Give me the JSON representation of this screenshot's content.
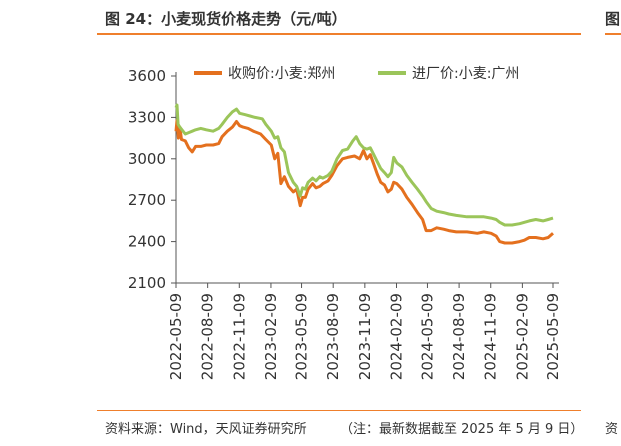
{
  "figure": {
    "title": "图 24：小麦现货价格走势（元/吨）",
    "source": "资料来源：Wind，天风证券研究所",
    "note": "（注：最新数据截至 2025 年 5 月 9 日）",
    "edge_title_fragment": "图",
    "edge_source_fragment": "资"
  },
  "chart_data": {
    "type": "line",
    "title": "小麦现货价格走势（元/吨）",
    "xlabel": "",
    "ylabel": "元/吨",
    "ylim": [
      2100,
      3600
    ],
    "yticks": [
      2100,
      2400,
      2700,
      3000,
      3300,
      3600
    ],
    "xlim": [
      "2022-05-09",
      "2025-05-09"
    ],
    "xticks": [
      "2022-05-09",
      "2022-08-09",
      "2022-11-09",
      "2023-02-09",
      "2023-05-09",
      "2023-08-09",
      "2023-11-09",
      "2024-02-09",
      "2024-05-09",
      "2024-08-09",
      "2024-11-09",
      "2025-02-09",
      "2025-05-09"
    ],
    "legend_position": "top",
    "colors": {
      "zhengzhou": "#e4701e",
      "guangzhou": "#9bc55a"
    },
    "series": [
      {
        "name": "收购价:小麦:郑州",
        "color": "#e4701e",
        "points": [
          [
            "2022-05-09",
            3200
          ],
          [
            "2022-05-12",
            3280
          ],
          [
            "2022-05-16",
            3150
          ],
          [
            "2022-05-20",
            3230
          ],
          [
            "2022-05-25",
            3140
          ],
          [
            "2022-06-05",
            3130
          ],
          [
            "2022-06-15",
            3080
          ],
          [
            "2022-06-25",
            3050
          ],
          [
            "2022-07-05",
            3090
          ],
          [
            "2022-07-20",
            3090
          ],
          [
            "2022-08-05",
            3100
          ],
          [
            "2022-08-25",
            3100
          ],
          [
            "2022-09-10",
            3110
          ],
          [
            "2022-09-20",
            3160
          ],
          [
            "2022-10-05",
            3200
          ],
          [
            "2022-10-20",
            3230
          ],
          [
            "2022-11-01",
            3270
          ],
          [
            "2022-11-10",
            3240
          ],
          [
            "2022-11-20",
            3230
          ],
          [
            "2022-12-05",
            3220
          ],
          [
            "2022-12-20",
            3200
          ],
          [
            "2023-01-10",
            3180
          ],
          [
            "2023-01-25",
            3140
          ],
          [
            "2023-02-10",
            3100
          ],
          [
            "2023-02-20",
            3000
          ],
          [
            "2023-03-01",
            3040
          ],
          [
            "2023-03-10",
            2820
          ],
          [
            "2023-03-20",
            2870
          ],
          [
            "2023-04-01",
            2800
          ],
          [
            "2023-04-15",
            2760
          ],
          [
            "2023-04-25",
            2780
          ],
          [
            "2023-05-05",
            2660
          ],
          [
            "2023-05-12",
            2720
          ],
          [
            "2023-05-20",
            2720
          ],
          [
            "2023-05-28",
            2780
          ],
          [
            "2023-06-10",
            2820
          ],
          [
            "2023-06-20",
            2790
          ],
          [
            "2023-07-01",
            2800
          ],
          [
            "2023-07-10",
            2820
          ],
          [
            "2023-07-25",
            2840
          ],
          [
            "2023-08-05",
            2880
          ],
          [
            "2023-08-20",
            2950
          ],
          [
            "2023-09-05",
            3000
          ],
          [
            "2023-09-20",
            3010
          ],
          [
            "2023-10-10",
            3020
          ],
          [
            "2023-10-25",
            3000
          ],
          [
            "2023-11-05",
            3060
          ],
          [
            "2023-11-15",
            3000
          ],
          [
            "2023-11-25",
            3030
          ],
          [
            "2023-12-05",
            2960
          ],
          [
            "2023-12-15",
            2890
          ],
          [
            "2023-12-25",
            2830
          ],
          [
            "2024-01-05",
            2810
          ],
          [
            "2024-01-15",
            2760
          ],
          [
            "2024-01-25",
            2780
          ],
          [
            "2024-02-01",
            2830
          ],
          [
            "2024-02-10",
            2820
          ],
          [
            "2024-02-25",
            2780
          ],
          [
            "2024-03-10",
            2720
          ],
          [
            "2024-03-25",
            2670
          ],
          [
            "2024-04-10",
            2610
          ],
          [
            "2024-04-25",
            2560
          ],
          [
            "2024-05-05",
            2480
          ],
          [
            "2024-05-20",
            2480
          ],
          [
            "2024-06-05",
            2500
          ],
          [
            "2024-06-25",
            2490
          ],
          [
            "2024-07-10",
            2480
          ],
          [
            "2024-08-01",
            2470
          ],
          [
            "2024-09-01",
            2470
          ],
          [
            "2024-10-01",
            2460
          ],
          [
            "2024-10-20",
            2470
          ],
          [
            "2024-11-10",
            2460
          ],
          [
            "2024-11-25",
            2440
          ],
          [
            "2024-12-05",
            2400
          ],
          [
            "2024-12-20",
            2390
          ],
          [
            "2025-01-10",
            2390
          ],
          [
            "2025-02-01",
            2400
          ],
          [
            "2025-02-15",
            2410
          ],
          [
            "2025-03-01",
            2430
          ],
          [
            "2025-03-20",
            2430
          ],
          [
            "2025-04-10",
            2420
          ],
          [
            "2025-04-25",
            2430
          ],
          [
            "2025-05-09",
            2460
          ]
        ]
      },
      {
        "name": "进厂价:小麦:广州",
        "color": "#9bc55a",
        "points": [
          [
            "2022-05-09",
            3370
          ],
          [
            "2022-05-12",
            3390
          ],
          [
            "2022-05-15",
            3250
          ],
          [
            "2022-05-20",
            3230
          ],
          [
            "2022-06-05",
            3180
          ],
          [
            "2022-06-15",
            3190
          ],
          [
            "2022-06-25",
            3200
          ],
          [
            "2022-07-05",
            3210
          ],
          [
            "2022-07-20",
            3220
          ],
          [
            "2022-08-05",
            3210
          ],
          [
            "2022-08-25",
            3200
          ],
          [
            "2022-09-10",
            3220
          ],
          [
            "2022-09-20",
            3250
          ],
          [
            "2022-10-05",
            3300
          ],
          [
            "2022-10-20",
            3340
          ],
          [
            "2022-11-01",
            3360
          ],
          [
            "2022-11-10",
            3330
          ],
          [
            "2022-11-25",
            3320
          ],
          [
            "2022-12-10",
            3310
          ],
          [
            "2022-12-25",
            3300
          ],
          [
            "2023-01-15",
            3290
          ],
          [
            "2023-01-25",
            3250
          ],
          [
            "2023-02-10",
            3200
          ],
          [
            "2023-02-20",
            3150
          ],
          [
            "2023-03-01",
            3160
          ],
          [
            "2023-03-10",
            3080
          ],
          [
            "2023-03-20",
            3050
          ],
          [
            "2023-04-01",
            2900
          ],
          [
            "2023-04-15",
            2830
          ],
          [
            "2023-04-25",
            2800
          ],
          [
            "2023-05-05",
            2730
          ],
          [
            "2023-05-12",
            2790
          ],
          [
            "2023-05-20",
            2780
          ],
          [
            "2023-05-28",
            2830
          ],
          [
            "2023-06-10",
            2860
          ],
          [
            "2023-06-20",
            2840
          ],
          [
            "2023-07-01",
            2870
          ],
          [
            "2023-07-10",
            2860
          ],
          [
            "2023-07-25",
            2880
          ],
          [
            "2023-08-05",
            2910
          ],
          [
            "2023-08-20",
            3000
          ],
          [
            "2023-09-05",
            3060
          ],
          [
            "2023-09-20",
            3070
          ],
          [
            "2023-10-05",
            3130
          ],
          [
            "2023-10-15",
            3160
          ],
          [
            "2023-10-25",
            3110
          ],
          [
            "2023-11-05",
            3080
          ],
          [
            "2023-11-15",
            3070
          ],
          [
            "2023-11-25",
            3080
          ],
          [
            "2023-12-05",
            3030
          ],
          [
            "2023-12-15",
            2980
          ],
          [
            "2023-12-25",
            2930
          ],
          [
            "2024-01-05",
            2900
          ],
          [
            "2024-01-15",
            2870
          ],
          [
            "2024-01-25",
            2900
          ],
          [
            "2024-02-01",
            3010
          ],
          [
            "2024-02-10",
            2970
          ],
          [
            "2024-02-25",
            2940
          ],
          [
            "2024-03-10",
            2880
          ],
          [
            "2024-03-25",
            2830
          ],
          [
            "2024-04-10",
            2780
          ],
          [
            "2024-04-25",
            2730
          ],
          [
            "2024-05-05",
            2690
          ],
          [
            "2024-05-20",
            2640
          ],
          [
            "2024-06-05",
            2620
          ],
          [
            "2024-06-25",
            2610
          ],
          [
            "2024-07-10",
            2600
          ],
          [
            "2024-08-01",
            2590
          ],
          [
            "2024-09-01",
            2580
          ],
          [
            "2024-10-01",
            2580
          ],
          [
            "2024-10-20",
            2580
          ],
          [
            "2024-11-10",
            2570
          ],
          [
            "2024-11-25",
            2560
          ],
          [
            "2024-12-05",
            2540
          ],
          [
            "2024-12-20",
            2520
          ],
          [
            "2025-01-10",
            2520
          ],
          [
            "2025-02-01",
            2530
          ],
          [
            "2025-02-15",
            2540
          ],
          [
            "2025-03-01",
            2550
          ],
          [
            "2025-03-20",
            2560
          ],
          [
            "2025-04-10",
            2550
          ],
          [
            "2025-04-25",
            2560
          ],
          [
            "2025-05-09",
            2570
          ]
        ]
      }
    ]
  }
}
